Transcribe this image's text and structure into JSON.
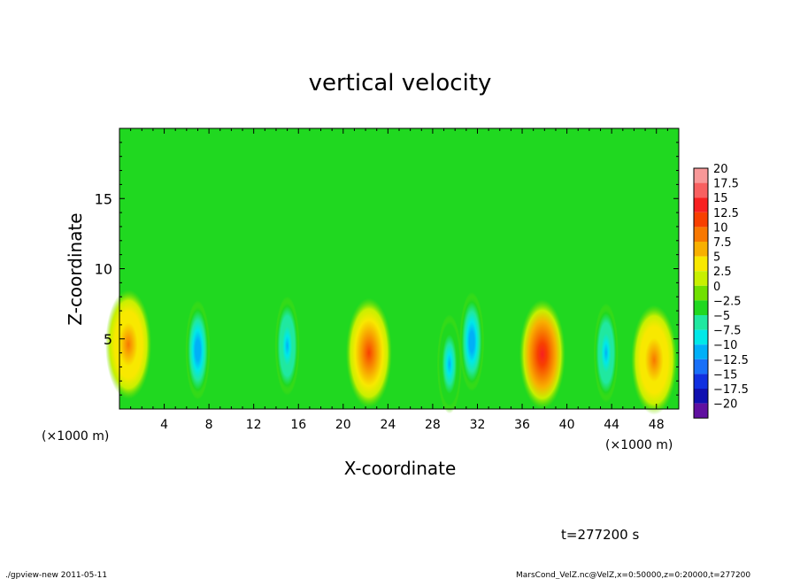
{
  "chart_data": {
    "type": "heatmap",
    "title": "vertical velocity",
    "xlabel": "X-coordinate",
    "ylabel": "Z-coordinate",
    "x_unit_left": "(×1000 m)",
    "x_unit_right": "(×1000 m)",
    "xlim": [
      0,
      50
    ],
    "ylim": [
      0,
      20
    ],
    "x_ticks": [
      4,
      8,
      12,
      16,
      20,
      24,
      28,
      32,
      36,
      40,
      44,
      48
    ],
    "y_ticks": [
      5,
      10,
      15
    ],
    "colorbar": {
      "levels": [
        "20",
        "17.5",
        "15",
        "12.5",
        "10",
        "7.5",
        "5",
        "2.5",
        "0",
        "−2.5",
        "−5",
        "−7.5",
        "−10",
        "−12.5",
        "−15",
        "−17.5",
        "−20"
      ],
      "colors": [
        "#f89898",
        "#f86060",
        "#f82020",
        "#f84000",
        "#f87800",
        "#f8b000",
        "#f8e800",
        "#c8f000",
        "#70e000",
        "#20d820",
        "#20e8a0",
        "#00e8e8",
        "#00b0f8",
        "#1870f8",
        "#1030e0",
        "#1010b0",
        "#6010a0"
      ]
    },
    "features": [
      {
        "x": 0.8,
        "z": 4.6,
        "w": 10,
        "kind": "updraft"
      },
      {
        "x": 7.0,
        "z": 4.2,
        "w": -11,
        "kind": "downdraft"
      },
      {
        "x": 15.0,
        "z": 4.5,
        "w": -10,
        "kind": "downdraft"
      },
      {
        "x": 22.3,
        "z": 4.0,
        "w": 13,
        "kind": "updraft"
      },
      {
        "x": 29.5,
        "z": 3.2,
        "w": -9,
        "kind": "downdraft"
      },
      {
        "x": 31.5,
        "z": 4.8,
        "w": -11,
        "kind": "downdraft"
      },
      {
        "x": 37.8,
        "z": 3.9,
        "w": 16,
        "kind": "updraft"
      },
      {
        "x": 43.5,
        "z": 4.0,
        "w": -10,
        "kind": "downdraft"
      },
      {
        "x": 47.8,
        "z": 3.5,
        "w": 10,
        "kind": "updraft"
      }
    ]
  },
  "annotations": {
    "time": "t=277200 s",
    "footer_left": "./gpview-new  2011-05-11",
    "footer_right": "MarsCond_VelZ.nc@VelZ,x=0:50000,z=0:20000,t=277200"
  }
}
